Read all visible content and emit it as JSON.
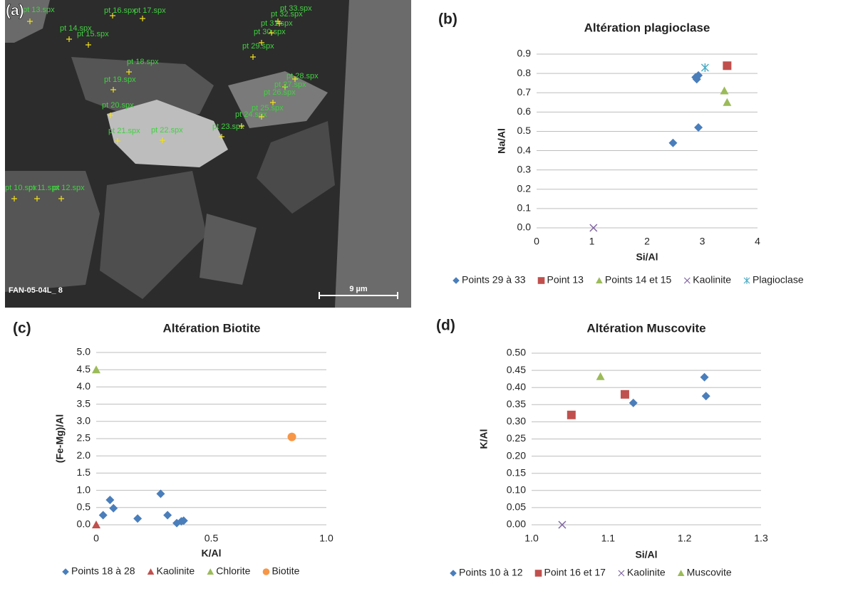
{
  "image": {
    "panel": "(a)",
    "caption": "FAN-05-04L_ 8",
    "scale_bar": "9 µm",
    "points": [
      "pt 13.spx",
      "pt 14.spx",
      "pt 15.spx",
      "pt 16.spx",
      "pt 17.spx",
      "pt 18.spx",
      "pt 19.spx",
      "pt 20.spx",
      "pt 21.spx",
      "pt 22.spx",
      "pt 23.spx",
      "pt 24.spx",
      "pt 25.spx",
      "pt 26.spx",
      "pt 27.spx",
      "pt 28.spx",
      "pt 29.spx",
      "pt 30.spx",
      "pt 31.spx",
      "pt 32.spx",
      "pt 33.spx",
      "pt 10.spx",
      "pt 11.spx",
      "pt 12.spx"
    ]
  },
  "chart_data": [
    {
      "type": "scatter",
      "panel": "(b)",
      "title": "Altération plagioclase",
      "xlabel": "Si/Al",
      "ylabel": "Na/Al",
      "xlim": [
        0,
        4
      ],
      "xticks": [
        0,
        1,
        2,
        3,
        4
      ],
      "ylim": [
        0,
        0.9
      ],
      "yticks": [
        {
          "value": 0,
          "label": "0.0"
        },
        0.1,
        0.2,
        0.3,
        0.4,
        0.5,
        0.6,
        0.7,
        0.8,
        0.9
      ],
      "grid": true,
      "legend": "bottom",
      "series": [
        {
          "name": "Points 29 à 33",
          "color": "#4a7ebb",
          "marker": "diamond",
          "x": [
            2.47,
            2.93,
            2.9,
            2.93,
            2.88
          ],
          "values": [
            0.44,
            0.52,
            0.77,
            0.79,
            0.78
          ]
        },
        {
          "name": "Point 13",
          "color": "#c0504d",
          "marker": "square",
          "x": [
            3.45
          ],
          "values": [
            0.84
          ]
        },
        {
          "name": "Points 14 et 15",
          "color": "#9bbb59",
          "marker": "triangle",
          "x": [
            3.4,
            3.45
          ],
          "values": [
            0.71,
            0.65
          ]
        },
        {
          "name": "Kaolinite",
          "color": "#8064a2",
          "marker": "x",
          "x": [
            1.03
          ],
          "values": [
            0
          ]
        },
        {
          "name": "Plagioclase",
          "color": "#4bacc6",
          "marker": "asterisk",
          "x": [
            3.05
          ],
          "values": [
            0.83
          ]
        }
      ]
    },
    {
      "type": "scatter",
      "panel": "(c)",
      "title": "Altération Biotite",
      "xlabel": "K/Al",
      "ylabel": "(Fe-Mg)/Al",
      "xlim": [
        0,
        1
      ],
      "xticks": [
        0,
        0.5,
        {
          "value": 1,
          "label": "1.0"
        }
      ],
      "ylim": [
        0,
        5
      ],
      "yticks": [
        {
          "value": 0,
          "label": "0.0"
        },
        0.5,
        {
          "value": 1,
          "label": "1.0"
        },
        1.5,
        {
          "value": 2,
          "label": "2.0"
        },
        2.5,
        {
          "value": 3,
          "label": "3.0"
        },
        3.5,
        {
          "value": 4,
          "label": "4.0"
        },
        4.5,
        {
          "value": 5,
          "label": "5.0"
        }
      ],
      "grid": true,
      "legend": "bottom",
      "series": [
        {
          "name": "Points 18 à 28",
          "color": "#4a7ebb",
          "marker": "diamond",
          "x": [
            0.03,
            0.06,
            0.075,
            0.18,
            0.28,
            0.31,
            0.35,
            0.37,
            0.38
          ],
          "values": [
            0.28,
            0.72,
            0.48,
            0.18,
            0.9,
            0.28,
            0.05,
            0.1,
            0.12
          ]
        },
        {
          "name": "Kaolinite",
          "color": "#c0504d",
          "marker": "triangle",
          "x": [
            0
          ],
          "values": [
            0
          ]
        },
        {
          "name": "Chlorite",
          "color": "#9bbb59",
          "marker": "triangle",
          "x": [
            0
          ],
          "values": [
            4.5
          ]
        },
        {
          "name": "Biotite",
          "color": "#f79646",
          "marker": "circle",
          "x": [
            0.85
          ],
          "values": [
            2.55
          ]
        }
      ]
    },
    {
      "type": "scatter",
      "panel": "(d)",
      "title": "Altération Muscovite",
      "xlabel": "Si/Al",
      "ylabel": "K/Al",
      "xlim": [
        1,
        1.3
      ],
      "xticks": [
        {
          "value": 1,
          "label": "1.0"
        },
        1.1,
        1.2,
        1.3
      ],
      "ylim": [
        0,
        0.5
      ],
      "yticks": [
        {
          "value": 0,
          "label": "0.00"
        },
        0.05,
        {
          "value": 0.1,
          "label": "0.10"
        },
        0.15,
        {
          "value": 0.2,
          "label": "0.20"
        },
        0.25,
        {
          "value": 0.3,
          "label": "0.30"
        },
        0.35,
        {
          "value": 0.4,
          "label": "0.40"
        },
        0.45,
        {
          "value": 0.5,
          "label": "0.50"
        }
      ],
      "grid": true,
      "legend": "bottom",
      "series": [
        {
          "name": "Points 10 à 12",
          "color": "#4a7ebb",
          "marker": "diamond",
          "x": [
            1.133,
            1.226,
            1.228
          ],
          "values": [
            0.355,
            0.43,
            0.375
          ]
        },
        {
          "name": "Point 16 et 17",
          "color": "#c0504d",
          "marker": "square",
          "x": [
            1.052,
            1.122
          ],
          "values": [
            0.32,
            0.38
          ]
        },
        {
          "name": "Kaolinite",
          "color": "#8064a2",
          "marker": "x",
          "x": [
            1.04
          ],
          "values": [
            0
          ]
        },
        {
          "name": "Muscovite",
          "color": "#9bbb59",
          "marker": "triangle",
          "x": [
            1.09
          ],
          "values": [
            0.432
          ]
        }
      ]
    }
  ]
}
